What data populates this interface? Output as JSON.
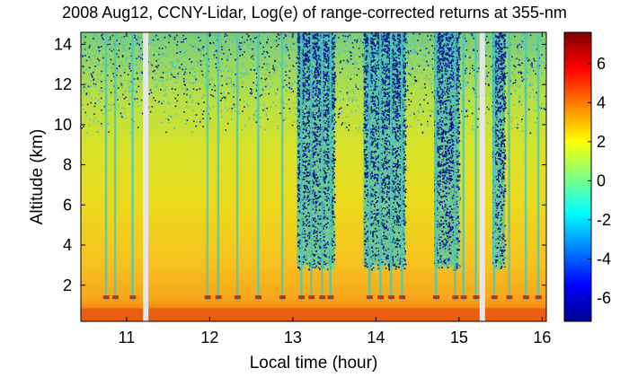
{
  "chart_data": {
    "type": "heatmap",
    "title": "2008 Aug12, CCNY-Lidar, Log(e) of range-corrected returns at 355-nm",
    "xlabel": "Local time (hour)",
    "ylabel": "Altitude (km)",
    "xlim": [
      10.45,
      16.05
    ],
    "ylim": [
      0.2,
      14.6
    ],
    "x_ticks": [
      "11",
      "12",
      "13",
      "14",
      "15",
      "16"
    ],
    "y_ticks": [
      "2",
      "4",
      "6",
      "8",
      "10",
      "12",
      "14"
    ],
    "colorbar": {
      "range": [
        -7.2,
        7.6
      ],
      "ticks": [
        "6",
        "4",
        "2",
        "0",
        "-2",
        "-4",
        "-6"
      ],
      "tick_values": [
        6,
        4,
        2,
        0,
        -2,
        -4,
        -6
      ],
      "colormap": "jet"
    },
    "data_gaps_hour": [
      11.23,
      15.28
    ],
    "cloud_base_km": 1.4,
    "boundary_layer_top_km": 2.8,
    "noisy_periods_hour": [
      [
        13.05,
        13.5
      ],
      [
        13.85,
        14.35
      ],
      [
        14.7,
        15.0
      ],
      [
        15.4,
        15.55
      ]
    ]
  },
  "colors": {
    "near_surface": "#e85f10",
    "boundary_layer": "#f6a91c",
    "mid_altitude": "#e8e01a",
    "upper_noise": "#8fd870",
    "low_signal": "#0a1a8c",
    "data_gap": "#e6e6e6"
  }
}
